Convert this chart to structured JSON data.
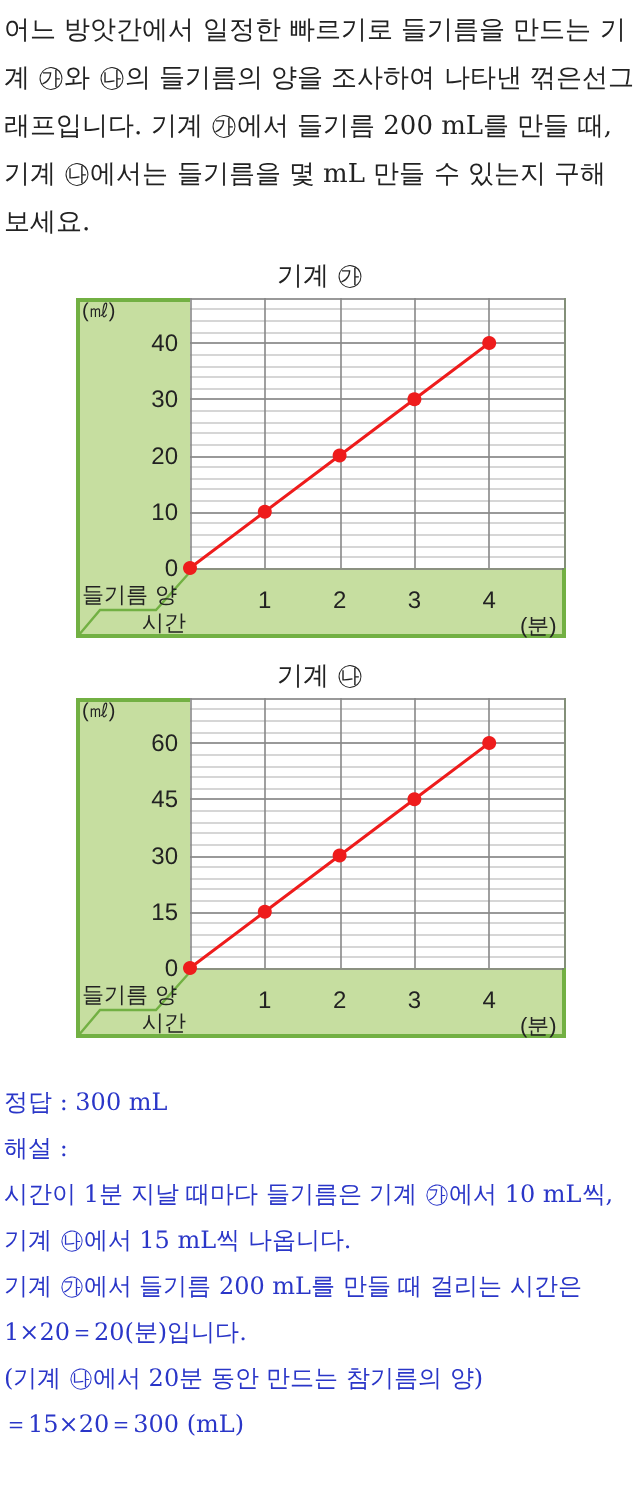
{
  "chart_data": [
    {
      "type": "line",
      "title": "기계 ㉮",
      "ylabel": "(㎖)",
      "xlabel": "(분)",
      "annotations": [
        "들기름 양",
        "시간",
        "어느 방앗간에서 일정한 빠르기로 들기름을 만드는 기계 ㉮와 ㉯의 들기름의 양을 조사하여 나타낸 꺾은선그래프입니다. 기계 ㉮에서 들기름 200 mL를 만들 때, 기계 ㉯에서는 들기름을 몇 mL 만들 수 있는지 구해 보세요."
      ],
      "x": [
        0,
        1,
        2,
        3,
        4
      ],
      "series": [
        {
          "color": "#ee1c1c",
          "values": [
            0,
            10,
            20,
            30,
            40
          ]
        }
      ],
      "xlim": [
        0,
        5
      ],
      "xticks": [
        1,
        2,
        3,
        4
      ],
      "ylim": [
        0,
        48
      ],
      "yticks": [
        0,
        10,
        20,
        30,
        40
      ],
      "grid": true,
      "marker": "circle",
      "line_style": "solid"
    },
    {
      "type": "line",
      "title": "기계 ㉯",
      "ylabel": "(㎖)",
      "xlabel": "(분)",
      "annotations": [
        "들기름 양",
        "시간",
        "정답 : 300 mL",
        "해설 :",
        "시간이 1분 지날 때마다 들기름은 기계 ㉮에서 10 mL씩, 기계 ㉯에서 15 mL씩 나옵니다.",
        "기계 ㉮에서 들기름 200 mL를 만들 때 걸리는 시간은 1×20＝20(분)입니다.",
        "(기계 ㉯에서 20분 동안 만드는 참기름의 양)",
        "＝15×20＝300 (mL)"
      ],
      "x": [
        0,
        1,
        2,
        3,
        4
      ],
      "series": [
        {
          "color": "#ee1c1c",
          "values": [
            0,
            15,
            30,
            45,
            60
          ]
        }
      ],
      "xlim": [
        0,
        5
      ],
      "xticks": [
        1,
        2,
        3,
        4
      ],
      "ylim": [
        0,
        72
      ],
      "yticks": [
        0,
        15,
        30,
        45,
        60
      ],
      "grid": true,
      "marker": "circle",
      "line_style": "solid"
    }
  ]
}
